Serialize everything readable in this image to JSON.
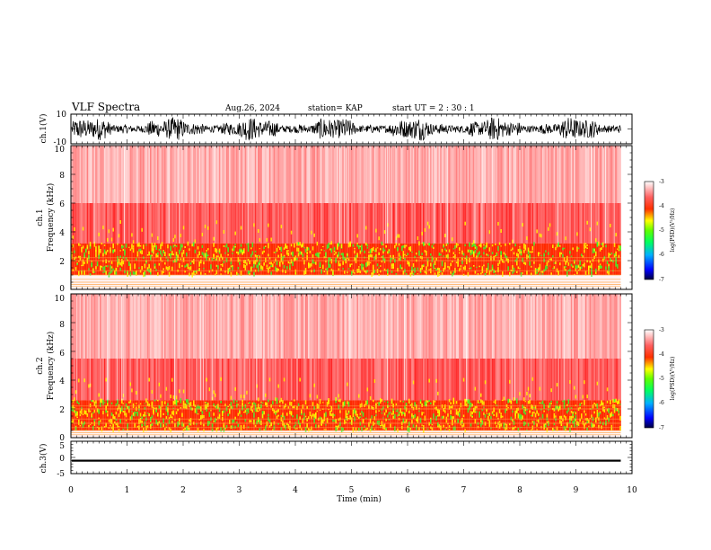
{
  "header": {
    "title": "VLF Spectra",
    "date": "Aug.26, 2024",
    "station": "station= KAP",
    "start": "start  UT =   2 : 30 : 1"
  },
  "colors": {
    "spectrum_low": "#ffffff",
    "spectrum_mid": "#ff2020",
    "spectrum_high": "#ffff00",
    "spectrum_peak": "#30ff30",
    "waveform": "#000000"
  },
  "chart_data": [
    {
      "type": "line",
      "id": "ch1-waveform",
      "ylabel": "ch.1(V)",
      "ylim": [
        -10,
        10
      ],
      "y_ticks": [
        "10",
        "-10"
      ],
      "xlim": [
        0,
        10
      ],
      "series": [
        {
          "values_description": "dense noise waveform filling roughly -8 to 8 V",
          "min": -8,
          "max": 8
        }
      ]
    },
    {
      "type": "heatmap",
      "id": "ch1-spectrogram",
      "ylabel": "ch.1",
      "ylabel2": "Frequency (kHz)",
      "ylim": [
        0,
        10
      ],
      "y_ticks": [
        "0",
        "2",
        "4",
        "6",
        "8",
        "10"
      ],
      "xlim": [
        0,
        10
      ],
      "data_end_min": 9.8,
      "bands_khz": {
        "strong": [
          1,
          3.2
        ],
        "moderate": [
          3.2,
          6
        ],
        "weak": [
          6,
          10
        ]
      },
      "colorbar": {
        "ticks": [
          "-3",
          "-4",
          "-5",
          "-6",
          "-7"
        ],
        "range": [
          -7,
          -3
        ],
        "label": "log(PSD)(V²/Hz)"
      }
    },
    {
      "type": "heatmap",
      "id": "ch2-spectrogram",
      "ylabel": "ch.2",
      "ylabel2": "Frequency (kHz)",
      "ylim": [
        0,
        10
      ],
      "y_ticks": [
        "0",
        "2",
        "4",
        "6",
        "8",
        "10"
      ],
      "xlim": [
        0,
        10
      ],
      "data_end_min": 9.8,
      "bands_khz": {
        "strong": [
          0.5,
          2.6
        ],
        "moderate": [
          2.6,
          5.5
        ],
        "weak": [
          5.5,
          10
        ]
      },
      "colorbar": {
        "ticks": [
          "-3",
          "-4",
          "-5",
          "-6",
          "-7"
        ],
        "range": [
          -7,
          -3
        ],
        "label": "log(PSD)(V²/Hz)"
      }
    },
    {
      "type": "line",
      "id": "ch3-waveform",
      "ylabel": "ch.3(V)",
      "ylim": [
        -5,
        5
      ],
      "y_ticks": [
        "5",
        "0",
        "-5"
      ],
      "xlim": [
        0,
        10
      ],
      "xlabel": "Time  (min)",
      "x_ticks": [
        "0",
        "1",
        "2",
        "3",
        "4",
        "5",
        "6",
        "7",
        "8",
        "9",
        "10"
      ],
      "series": [
        {
          "values_description": "nearly constant band around -1 V",
          "min": -1.3,
          "max": -0.7
        }
      ]
    }
  ]
}
